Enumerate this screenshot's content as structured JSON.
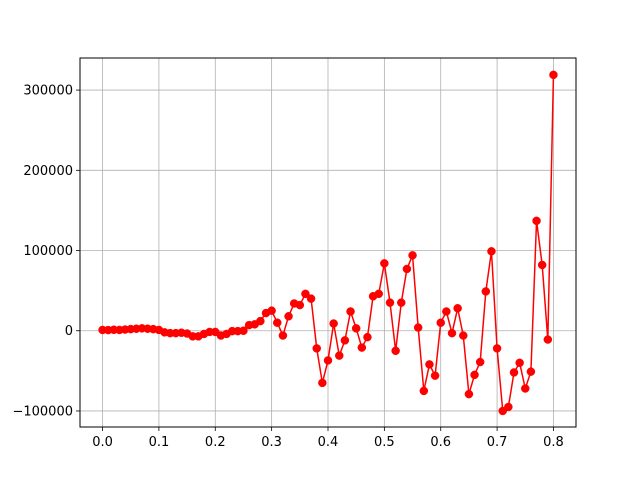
{
  "chart_data": {
    "type": "line",
    "title": "",
    "xlabel": "",
    "ylabel": "",
    "xlim": [
      -0.04,
      0.84
    ],
    "ylim": [
      -120000,
      340000
    ],
    "xticks": [
      0.0,
      0.1,
      0.2,
      0.3,
      0.4,
      0.5,
      0.6,
      0.7,
      0.8
    ],
    "xtick_labels": [
      "0.0",
      "0.1",
      "0.2",
      "0.3",
      "0.4",
      "0.5",
      "0.6",
      "0.7",
      "0.8"
    ],
    "yticks": [
      -100000,
      0,
      100000,
      200000,
      300000
    ],
    "ytick_labels": [
      "−100000",
      "0",
      "100000",
      "200000",
      "300000"
    ],
    "grid": true,
    "legend": "none",
    "series": [
      {
        "color": "#ff0000",
        "marker": "circle",
        "x": [
          0.0,
          0.01,
          0.02,
          0.03,
          0.04,
          0.05,
          0.06,
          0.07,
          0.08,
          0.09,
          0.1,
          0.11,
          0.12,
          0.13,
          0.14,
          0.15,
          0.16,
          0.17,
          0.18,
          0.19,
          0.2,
          0.21,
          0.22,
          0.23,
          0.24,
          0.25,
          0.26,
          0.27,
          0.28,
          0.29,
          0.3,
          0.31,
          0.32,
          0.33,
          0.34,
          0.35,
          0.36,
          0.37,
          0.38,
          0.39,
          0.4,
          0.41,
          0.42,
          0.43,
          0.44,
          0.45,
          0.46,
          0.47,
          0.48,
          0.49,
          0.5,
          0.51,
          0.52,
          0.53,
          0.54,
          0.55,
          0.56,
          0.57,
          0.58,
          0.59,
          0.6,
          0.61,
          0.62,
          0.63,
          0.64,
          0.65,
          0.66,
          0.67,
          0.68,
          0.69,
          0.7,
          0.71,
          0.72,
          0.73,
          0.74,
          0.75,
          0.76,
          0.77,
          0.78,
          0.79,
          0.8
        ],
        "y": [
          1000,
          800,
          1200,
          1000,
          1500,
          2000,
          2500,
          3000,
          2500,
          2000,
          1000,
          -2000,
          -3000,
          -3000,
          -2500,
          -3500,
          -7000,
          -7000,
          -4000,
          -1500,
          -1500,
          -6000,
          -4000,
          -500,
          -500,
          0,
          7000,
          8000,
          12000,
          22000,
          25000,
          10000,
          -6000,
          18000,
          34000,
          32000,
          46000,
          40000,
          -22000,
          -65000,
          -37000,
          9000,
          -31000,
          -12000,
          24000,
          3000,
          -21000,
          -8000,
          43000,
          46000,
          84000,
          35000,
          -25000,
          35000,
          77000,
          94000,
          4000,
          -75000,
          -42000,
          -56000,
          10000,
          24000,
          -3000,
          28000,
          -6000,
          -79000,
          -55000,
          -39000,
          49000,
          99000,
          -22000,
          -100000,
          -95000,
          -52000,
          -40000,
          -72000,
          -51000,
          137000,
          82000,
          -11000,
          319000
        ]
      }
    ]
  }
}
